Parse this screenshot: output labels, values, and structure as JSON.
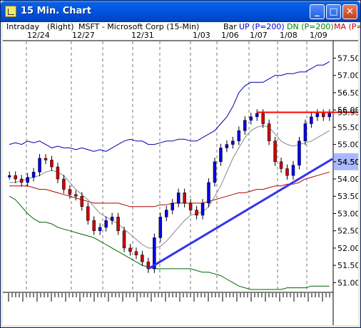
{
  "window": {
    "title": "15 Min. Chart",
    "buttons": {
      "minimize": "_",
      "maximize": "□",
      "close": "✕"
    }
  },
  "header": {
    "intraday": "Intraday",
    "scale": "(Right)",
    "symbol": "MSFT - Microsoft Corp (15-Min)",
    "style": "Bar",
    "up": "UP (P=200)",
    "dn": "DN (P=200)",
    "ma": "MA (P="
  },
  "dates": [
    "12/24",
    "12/27",
    "12/31",
    "1/03",
    "1/06",
    "1/07",
    "1/08",
    "1/09"
  ],
  "price_labels": [
    "57.50",
    "57.00",
    "56.50",
    "56.00",
    "55.50",
    "55.00",
    "54.50",
    "54.00",
    "53.50",
    "53.00",
    "52.50",
    "52.00",
    "51.50",
    "51.00"
  ],
  "highlight_price": "54.50",
  "resistance_price": "55.93",
  "colors": {
    "up_band": "#0000b0",
    "dn_band": "#006400",
    "ma": "#b00000",
    "trendline": "#3333ee",
    "resistance": "#ff0000",
    "price_up": "#0000ee",
    "price_down": "#cc0000"
  },
  "chart_data": {
    "type": "line",
    "ylim": [
      50.8,
      57.8
    ],
    "series": [
      {
        "name": "Price",
        "values": [
          54.1,
          54.0,
          53.9,
          54.05,
          54.2,
          54.6,
          54.55,
          54.35,
          54.0,
          53.7,
          53.55,
          53.5,
          53.2,
          52.8,
          52.5,
          52.6,
          52.8,
          52.9,
          52.5,
          52.0,
          51.9,
          51.8,
          51.6,
          51.4,
          52.3,
          52.9,
          53.1,
          53.3,
          53.6,
          53.3,
          53.1,
          52.95,
          53.3,
          53.9,
          54.5,
          54.9,
          55.0,
          55.1,
          55.4,
          55.7,
          55.8,
          55.9,
          55.6,
          55.1,
          54.5,
          54.3,
          54.1,
          54.4,
          55.1,
          55.6,
          55.8,
          55.9,
          55.8,
          55.9
        ]
      },
      {
        "name": "UP (P=200)",
        "values": [
          55.0,
          55.05,
          55.0,
          55.1,
          55.05,
          55.1,
          55.0,
          54.9,
          54.95,
          54.9,
          54.9,
          54.85,
          54.9,
          54.85,
          54.8,
          54.85,
          54.8,
          54.9,
          55.0,
          55.1,
          55.15,
          55.1,
          55.1,
          55.0,
          55.0,
          55.05,
          55.1,
          55.1,
          55.15,
          55.15,
          55.1,
          55.1,
          55.2,
          55.3,
          55.4,
          55.6,
          55.8,
          56.1,
          56.5,
          56.7,
          56.8,
          56.8,
          56.8,
          56.9,
          57.0,
          57.0,
          57.05,
          57.05,
          57.1,
          57.1,
          57.2,
          57.3,
          57.3,
          57.4
        ]
      },
      {
        "name": "DN (P=200)",
        "values": [
          53.5,
          53.4,
          53.2,
          53.0,
          52.85,
          52.75,
          52.75,
          52.7,
          52.6,
          52.55,
          52.5,
          52.45,
          52.4,
          52.35,
          52.3,
          52.2,
          52.1,
          52.0,
          51.9,
          51.8,
          51.7,
          51.6,
          51.5,
          51.45,
          51.4,
          51.4,
          51.4,
          51.4,
          51.4,
          51.4,
          51.4,
          51.35,
          51.3,
          51.3,
          51.25,
          51.2,
          51.1,
          51.0,
          50.9,
          50.85,
          50.8,
          50.8,
          50.8,
          50.8,
          50.8,
          50.8,
          50.85,
          50.85,
          50.85,
          50.85,
          50.9,
          50.9,
          50.9,
          50.9
        ]
      },
      {
        "name": "MA",
        "values": [
          53.8,
          53.8,
          53.8,
          53.8,
          53.75,
          53.7,
          53.7,
          53.65,
          53.6,
          53.55,
          53.5,
          53.45,
          53.4,
          53.35,
          53.3,
          53.3,
          53.3,
          53.3,
          53.3,
          53.25,
          53.2,
          53.2,
          53.2,
          53.2,
          53.2,
          53.25,
          53.25,
          53.3,
          53.3,
          53.3,
          53.3,
          53.3,
          53.3,
          53.35,
          53.4,
          53.45,
          53.5,
          53.55,
          53.6,
          53.6,
          53.65,
          53.7,
          53.7,
          53.75,
          53.8,
          53.8,
          53.85,
          53.85,
          53.9,
          54.0,
          54.05,
          54.1,
          54.15,
          54.2
        ]
      },
      {
        "name": "Short MA",
        "values": [
          53.9,
          53.9,
          53.95,
          54.0,
          54.05,
          54.1,
          54.2,
          54.25,
          54.2,
          54.1,
          53.9,
          53.7,
          53.55,
          53.4,
          53.2,
          53.0,
          52.9,
          52.8,
          52.7,
          52.55,
          52.4,
          52.25,
          52.1,
          52.0,
          52.0,
          52.05,
          52.2,
          52.4,
          52.6,
          52.8,
          52.95,
          53.0,
          53.05,
          53.2,
          53.5,
          53.8,
          54.2,
          54.6,
          54.9,
          55.2,
          55.4,
          55.5,
          55.55,
          55.5,
          55.3,
          55.1,
          55.0,
          54.95,
          55.0,
          55.05,
          55.1,
          55.2,
          55.3,
          55.4
        ]
      }
    ]
  }
}
